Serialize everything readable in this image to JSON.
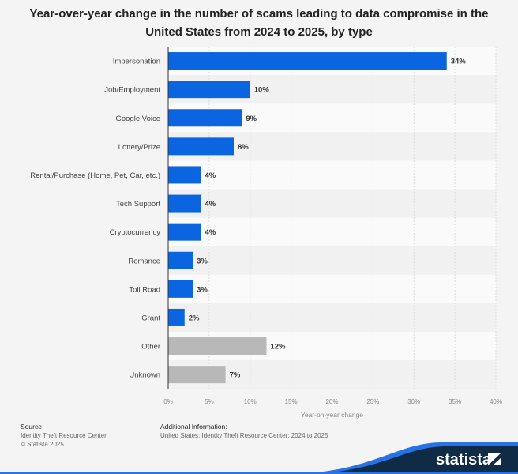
{
  "chart_data": {
    "type": "bar",
    "orientation": "horizontal",
    "title": "Year-over-year change in the number of scams leading to data compromise in the United States from 2024 to 2025, by type",
    "categories": [
      "Impersonation",
      "Job/Employment",
      "Google Voice",
      "Lottery/Prize",
      "Rental/Purchase (Home, Pet, Car, etc.)",
      "Tech Support",
      "Cryptocurrency",
      "Romance",
      "Toll Road",
      "Grant",
      "Other",
      "Unknown"
    ],
    "values": [
      34,
      10,
      9,
      8,
      4,
      4,
      4,
      3,
      3,
      2,
      12,
      7
    ],
    "data_labels": [
      "34%",
      "10%",
      "9%",
      "8%",
      "4%",
      "4%",
      "4%",
      "3%",
      "3%",
      "2%",
      "12%",
      "7%"
    ],
    "bar_colors": [
      "#0b64e0",
      "#0b64e0",
      "#0b64e0",
      "#0b64e0",
      "#0b64e0",
      "#0b64e0",
      "#0b64e0",
      "#0b64e0",
      "#0b64e0",
      "#0b64e0",
      "#b8b8b8",
      "#b8b8b8"
    ],
    "xlabel": "Year-on-year change",
    "ylabel": "",
    "xlim": [
      0,
      40
    ],
    "xticks": [
      "0%",
      "5%",
      "10%",
      "15%",
      "20%",
      "25%",
      "30%",
      "35%",
      "40%"
    ],
    "grid": true
  },
  "footer": {
    "source_heading": "Source",
    "source": "Identity Theft Resource Center",
    "copyright": "© Statista 2025",
    "info_heading": "Additional Information:",
    "info": "United States; Identity Theft Resource Center; 2024 to 2025",
    "logo": "statista"
  }
}
